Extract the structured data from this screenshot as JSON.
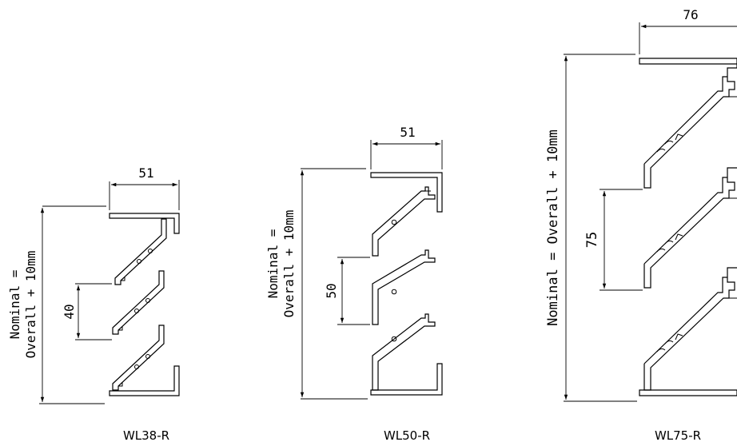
{
  "panels": [
    {
      "label": "WL38-R",
      "width_dim": "51",
      "pitch_dim": "40",
      "nominal_line1": "Nominal  =",
      "nominal_line2": "Overall  +  10mm"
    },
    {
      "label": "WL50-R",
      "width_dim": "51",
      "pitch_dim": "50",
      "nominal_line1": "Nominal  =",
      "nominal_line2": "Overall  +  10mm"
    },
    {
      "label": "WL75-R",
      "width_dim": "76",
      "pitch_dim": "75",
      "nominal_line1": "Nominal  =  Overall  +  10mm"
    }
  ]
}
